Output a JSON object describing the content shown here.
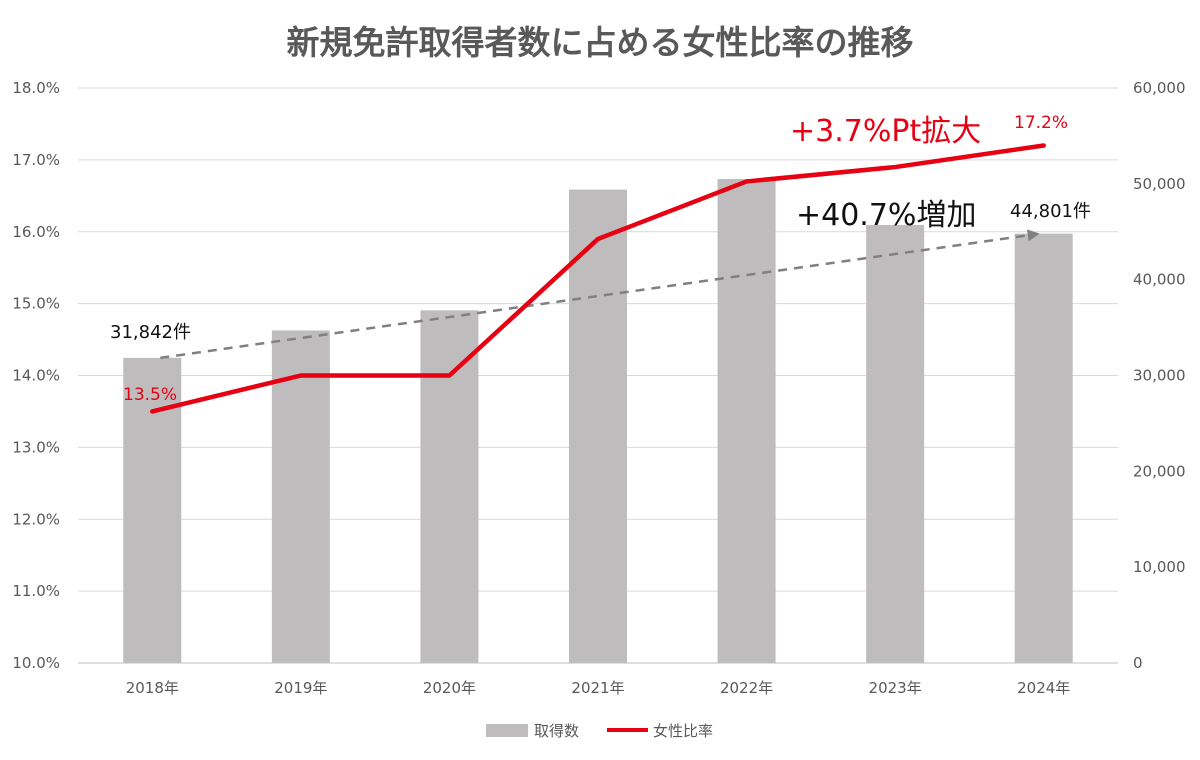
{
  "chart_data": {
    "type": "bar",
    "title": "新規免許取得者数に占める女性比率の推移",
    "categories": [
      "2018年",
      "2019年",
      "2020年",
      "2021年",
      "2022年",
      "2023年",
      "2024年"
    ],
    "series": [
      {
        "name": "取得数",
        "type": "bar",
        "axis": "right",
        "color": "#bfbcbd",
        "values": [
          31842,
          34700,
          36800,
          49400,
          50500,
          45700,
          44801
        ]
      },
      {
        "name": "女性比率",
        "type": "line",
        "axis": "left",
        "color": "#e60012",
        "values": [
          13.5,
          14.0,
          14.0,
          15.9,
          16.7,
          16.9,
          17.2
        ]
      }
    ],
    "trend_line": {
      "from": 31842,
      "to": 44801,
      "color": "#808080",
      "style": "dashed-arrow"
    },
    "y_left": {
      "min": 10,
      "max": 18,
      "step": 1,
      "ticks": [
        "10.0%",
        "11.0%",
        "12.0%",
        "13.0%",
        "14.0%",
        "15.0%",
        "16.0%",
        "17.0%",
        "18.0%"
      ]
    },
    "y_right": {
      "min": 0,
      "max": 60000,
      "step": 10000,
      "ticks": [
        "0",
        "10,000",
        "20,000",
        "30,000",
        "40,000",
        "50,000",
        "60,000"
      ]
    },
    "data_labels": {
      "first_count": "31,842件",
      "last_count": "44,801件",
      "first_ratio": "13.5%",
      "last_ratio": "17.2%"
    },
    "annotations": {
      "ratio_change": "+3.7%Pt拡大",
      "count_change": "+40.7%増加"
    },
    "grid": true,
    "legend_position": "bottom"
  }
}
